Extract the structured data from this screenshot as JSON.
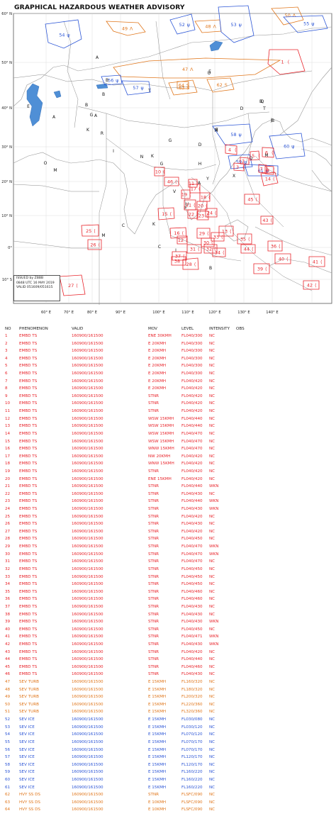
{
  "map": {
    "title": "GRAPHICAL HAZARDOUS WEATHER ADVISORY",
    "issued_by": "ISSUED by ZBBB",
    "issue_time": "0848 UTC 16 MAY 2019",
    "valid": "VALID 051609/051615",
    "lat_labels": [
      "60° N",
      "50° N",
      "40° N",
      "30° N",
      "20° N",
      "10° N",
      "0°",
      "10° S"
    ],
    "lon_labels": [
      "60° E",
      "70° E",
      "80° E",
      "90° E",
      "100° E",
      "110° E",
      "120° E",
      "130° E",
      "140° E"
    ],
    "fir_letters": [
      "A",
      "B",
      "B",
      "E",
      "A",
      "B",
      "G",
      "A",
      "E",
      "U",
      "E",
      "Q",
      "D",
      "T",
      "O",
      "M",
      "K",
      "R",
      "I",
      "N",
      "K",
      "D",
      "C",
      "Q",
      "X",
      "H",
      "A",
      "V",
      "Y",
      "U",
      "C",
      "K",
      "P",
      "M",
      "C",
      "I",
      "B",
      "M",
      "J",
      "M",
      "T",
      "G",
      "B",
      "G",
      "B"
    ],
    "colors": {
      "ts": "#e8232a",
      "turb": "#e0761b",
      "ice": "#2b55d6",
      "ss": "#e0761b",
      "land": "#ffffff",
      "lake": "#4f8fd6",
      "border": "#8a8a8a"
    },
    "advisories": [
      {
        "num": "54",
        "kind": "ice"
      },
      {
        "num": "49",
        "kind": "turb"
      },
      {
        "num": "52",
        "kind": "ice"
      },
      {
        "num": "48",
        "kind": "turb"
      },
      {
        "num": "53",
        "kind": "ice"
      },
      {
        "num": "50",
        "kind": "turb"
      },
      {
        "num": "55",
        "kind": "ice"
      },
      {
        "num": "1",
        "kind": "ts"
      },
      {
        "num": "47",
        "kind": "turb"
      },
      {
        "num": "56",
        "kind": "ice"
      },
      {
        "num": "57",
        "kind": "ice"
      },
      {
        "num": "63",
        "kind": "ss"
      },
      {
        "num": "62",
        "kind": "ss"
      },
      {
        "num": "58",
        "kind": "ice"
      },
      {
        "num": "60",
        "kind": "ice"
      },
      {
        "num": "59",
        "kind": "ice"
      },
      {
        "num": "61",
        "kind": "ice"
      },
      {
        "num": "4",
        "kind": "ts"
      },
      {
        "num": "3",
        "kind": "ts"
      },
      {
        "num": "5",
        "kind": "ts"
      },
      {
        "num": "6",
        "kind": "ts"
      },
      {
        "num": "7",
        "kind": "ts"
      },
      {
        "num": "8",
        "kind": "ts"
      },
      {
        "num": "2",
        "kind": "ts"
      },
      {
        "num": "10",
        "kind": "ts"
      },
      {
        "num": "11",
        "kind": "ts"
      },
      {
        "num": "12",
        "kind": "ts"
      },
      {
        "num": "13",
        "kind": "ts"
      },
      {
        "num": "14",
        "kind": "ts"
      },
      {
        "num": "15",
        "kind": "ts"
      },
      {
        "num": "16",
        "kind": "ts"
      },
      {
        "num": "17",
        "kind": "ts"
      },
      {
        "num": "18",
        "kind": "ts"
      },
      {
        "num": "19",
        "kind": "ts"
      },
      {
        "num": "20",
        "kind": "ts"
      },
      {
        "num": "21",
        "kind": "ts"
      },
      {
        "num": "22",
        "kind": "ts"
      },
      {
        "num": "23",
        "kind": "ts"
      },
      {
        "num": "24",
        "kind": "ts"
      },
      {
        "num": "25",
        "kind": "ts"
      },
      {
        "num": "26",
        "kind": "ts"
      },
      {
        "num": "27",
        "kind": "ts"
      },
      {
        "num": "28",
        "kind": "ts"
      },
      {
        "num": "29",
        "kind": "ts"
      },
      {
        "num": "30",
        "kind": "ts"
      },
      {
        "num": "31",
        "kind": "ts"
      },
      {
        "num": "32",
        "kind": "ts"
      },
      {
        "num": "33",
        "kind": "ts"
      },
      {
        "num": "34",
        "kind": "ts"
      },
      {
        "num": "35",
        "kind": "ts"
      },
      {
        "num": "36",
        "kind": "ts"
      },
      {
        "num": "37",
        "kind": "ts"
      },
      {
        "num": "38",
        "kind": "ts"
      },
      {
        "num": "39",
        "kind": "ts"
      },
      {
        "num": "40",
        "kind": "ts"
      },
      {
        "num": "41",
        "kind": "ts"
      },
      {
        "num": "42",
        "kind": "ts"
      },
      {
        "num": "43",
        "kind": "ts"
      },
      {
        "num": "44",
        "kind": "ts"
      },
      {
        "num": "45",
        "kind": "ts"
      },
      {
        "num": "46",
        "kind": "ts"
      },
      {
        "num": "64",
        "kind": "ss"
      }
    ]
  },
  "table": {
    "headers": {
      "no": "NO",
      "phenomenon": "PHENOMENON",
      "valid": "VALID",
      "mov": "MOV",
      "level": "LEVEL",
      "intensity": "INTENSITY",
      "obs": "OBS"
    },
    "rows": [
      {
        "no": "1",
        "phen": "EMBD TS",
        "valid": "160900/161500",
        "mov": "ENE 30KMH",
        "level": "FL040/300",
        "int": "NC",
        "kind": "ts"
      },
      {
        "no": "2",
        "phen": "EMBD TS",
        "valid": "160900/161500",
        "mov": "E 20KMH",
        "level": "FL040/300",
        "int": "NC",
        "kind": "ts"
      },
      {
        "no": "3",
        "phen": "EMBD TS",
        "valid": "160900/161500",
        "mov": "E 20KMH",
        "level": "FL040/300",
        "int": "NC",
        "kind": "ts"
      },
      {
        "no": "4",
        "phen": "EMBD TS",
        "valid": "160900/161500",
        "mov": "E 20KMH",
        "level": "FL040/300",
        "int": "NC",
        "kind": "ts"
      },
      {
        "no": "5",
        "phen": "EMBD TS",
        "valid": "160900/161500",
        "mov": "E 20KMH",
        "level": "FL040/300",
        "int": "NC",
        "kind": "ts"
      },
      {
        "no": "6",
        "phen": "EMBD TS",
        "valid": "160900/161500",
        "mov": "E 20KMH",
        "level": "FL040/300",
        "int": "NC",
        "kind": "ts"
      },
      {
        "no": "7",
        "phen": "EMBD TS",
        "valid": "160900/161500",
        "mov": "E 20KMH",
        "level": "FL040/420",
        "int": "NC",
        "kind": "ts"
      },
      {
        "no": "8",
        "phen": "EMBD TS",
        "valid": "160900/161500",
        "mov": "E 20KMH",
        "level": "FL040/420",
        "int": "NC",
        "kind": "ts"
      },
      {
        "no": "9",
        "phen": "EMBD TS",
        "valid": "160900/161500",
        "mov": "STNR",
        "level": "FL040/420",
        "int": "NC",
        "kind": "ts"
      },
      {
        "no": "10",
        "phen": "EMBD TS",
        "valid": "160900/161500",
        "mov": "STNR",
        "level": "FL040/420",
        "int": "NC",
        "kind": "ts"
      },
      {
        "no": "11",
        "phen": "EMBD TS",
        "valid": "160900/161500",
        "mov": "STNR",
        "level": "FL040/420",
        "int": "NC",
        "kind": "ts"
      },
      {
        "no": "12",
        "phen": "EMBD TS",
        "valid": "160900/161500",
        "mov": "WSW 15KMH",
        "level": "FL040/440",
        "int": "NC",
        "kind": "ts"
      },
      {
        "no": "13",
        "phen": "EMBD TS",
        "valid": "160900/161500",
        "mov": "WSW 15KMH",
        "level": "FL040/440",
        "int": "NC",
        "kind": "ts"
      },
      {
        "no": "14",
        "phen": "EMBD TS",
        "valid": "160900/161500",
        "mov": "WSW 15KMH",
        "level": "FL040/470",
        "int": "NC",
        "kind": "ts"
      },
      {
        "no": "15",
        "phen": "EMBD TS",
        "valid": "160900/161500",
        "mov": "WSW 15KMH",
        "level": "FL040/470",
        "int": "NC",
        "kind": "ts"
      },
      {
        "no": "16",
        "phen": "EMBD TS",
        "valid": "160900/161500",
        "mov": "WNW 15KMH",
        "level": "FL040/470",
        "int": "NC",
        "kind": "ts"
      },
      {
        "no": "17",
        "phen": "EMBD TS",
        "valid": "160900/161500",
        "mov": "NW 20KMH",
        "level": "FL040/420",
        "int": "NC",
        "kind": "ts"
      },
      {
        "no": "18",
        "phen": "EMBD TS",
        "valid": "160900/161500",
        "mov": "WNW 15KMH",
        "level": "FL040/420",
        "int": "NC",
        "kind": "ts"
      },
      {
        "no": "19",
        "phen": "EMBD TS",
        "valid": "160900/161500",
        "mov": "STNR",
        "level": "FL040/420",
        "int": "NC",
        "kind": "ts"
      },
      {
        "no": "20",
        "phen": "EMBD TS",
        "valid": "160900/161500",
        "mov": "ENE 15KMH",
        "level": "FL040/420",
        "int": "NC",
        "kind": "ts"
      },
      {
        "no": "21",
        "phen": "EMBD TS",
        "valid": "160900/161500",
        "mov": "STNR",
        "level": "FL040/440",
        "int": "WKN",
        "kind": "ts"
      },
      {
        "no": "22",
        "phen": "EMBD TS",
        "valid": "160900/161500",
        "mov": "STNR",
        "level": "FL040/430",
        "int": "NC",
        "kind": "ts"
      },
      {
        "no": "23",
        "phen": "EMBD TS",
        "valid": "160900/161500",
        "mov": "STNR",
        "level": "FL040/440",
        "int": "WKN",
        "kind": "ts"
      },
      {
        "no": "24",
        "phen": "EMBD TS",
        "valid": "160900/161500",
        "mov": "STNR",
        "level": "FL040/430",
        "int": "WKN",
        "kind": "ts"
      },
      {
        "no": "25",
        "phen": "EMBD TS",
        "valid": "160900/161500",
        "mov": "STNR",
        "level": "FL040/420",
        "int": "NC",
        "kind": "ts"
      },
      {
        "no": "26",
        "phen": "EMBD TS",
        "valid": "160900/161500",
        "mov": "STNR",
        "level": "FL040/430",
        "int": "NC",
        "kind": "ts"
      },
      {
        "no": "27",
        "phen": "EMBD TS",
        "valid": "160900/161500",
        "mov": "STNR",
        "level": "FL040/420",
        "int": "NC",
        "kind": "ts"
      },
      {
        "no": "28",
        "phen": "EMBD TS",
        "valid": "160900/161500",
        "mov": "STNR",
        "level": "FL040/450",
        "int": "NC",
        "kind": "ts"
      },
      {
        "no": "29",
        "phen": "EMBD TS",
        "valid": "160900/161500",
        "mov": "STNR",
        "level": "FL040/470",
        "int": "WKN",
        "kind": "ts"
      },
      {
        "no": "30",
        "phen": "EMBD TS",
        "valid": "160900/161500",
        "mov": "STNR",
        "level": "FL040/470",
        "int": "WKN",
        "kind": "ts"
      },
      {
        "no": "31",
        "phen": "EMBD TS",
        "valid": "160900/161500",
        "mov": "STNR",
        "level": "FL040/470",
        "int": "NC",
        "kind": "ts"
      },
      {
        "no": "32",
        "phen": "EMBD TS",
        "valid": "160900/161500",
        "mov": "STNR",
        "level": "FL040/450",
        "int": "NC",
        "kind": "ts"
      },
      {
        "no": "33",
        "phen": "EMBD TS",
        "valid": "160900/161500",
        "mov": "STNR",
        "level": "FL040/450",
        "int": "NC",
        "kind": "ts"
      },
      {
        "no": "34",
        "phen": "EMBD TS",
        "valid": "160900/161500",
        "mov": "STNR",
        "level": "FL040/450",
        "int": "NC",
        "kind": "ts"
      },
      {
        "no": "35",
        "phen": "EMBD TS",
        "valid": "160900/161500",
        "mov": "STNR",
        "level": "FL040/460",
        "int": "NC",
        "kind": "ts"
      },
      {
        "no": "36",
        "phen": "EMBD TS",
        "valid": "160900/161500",
        "mov": "STNR",
        "level": "FL040/460",
        "int": "NC",
        "kind": "ts"
      },
      {
        "no": "37",
        "phen": "EMBD TS",
        "valid": "160900/161500",
        "mov": "STNR",
        "level": "FL040/430",
        "int": "NC",
        "kind": "ts"
      },
      {
        "no": "38",
        "phen": "EMBD TS",
        "valid": "160900/161500",
        "mov": "STNR",
        "level": "FL040/430",
        "int": "NC",
        "kind": "ts"
      },
      {
        "no": "39",
        "phen": "EMBD TS",
        "valid": "160900/161500",
        "mov": "STNR",
        "level": "FL040/430",
        "int": "WKN",
        "kind": "ts"
      },
      {
        "no": "40",
        "phen": "EMBD TS",
        "valid": "160900/161500",
        "mov": "STNR",
        "level": "FL040/450",
        "int": "NC",
        "kind": "ts"
      },
      {
        "no": "41",
        "phen": "EMBD TS",
        "valid": "160900/161500",
        "mov": "STNR",
        "level": "FL040/471",
        "int": "WKN",
        "kind": "ts"
      },
      {
        "no": "42",
        "phen": "EMBD TS",
        "valid": "160900/161500",
        "mov": "STNR",
        "level": "FL040/430",
        "int": "WKN",
        "kind": "ts"
      },
      {
        "no": "43",
        "phen": "EMBD TS",
        "valid": "160900/161500",
        "mov": "STNR",
        "level": "FL040/420",
        "int": "NC",
        "kind": "ts"
      },
      {
        "no": "44",
        "phen": "EMBD TS",
        "valid": "160900/161500",
        "mov": "STNR",
        "level": "FL040/440",
        "int": "NC",
        "kind": "ts"
      },
      {
        "no": "45",
        "phen": "EMBD TS",
        "valid": "160900/161500",
        "mov": "STNR",
        "level": "FL040/460",
        "int": "NC",
        "kind": "ts"
      },
      {
        "no": "46",
        "phen": "EMBD TS",
        "valid": "160900/161500",
        "mov": "STNR",
        "level": "FL040/430",
        "int": "NC",
        "kind": "ts"
      },
      {
        "no": "47",
        "phen": "SEV TURB",
        "valid": "160900/161500",
        "mov": "E 15KMH",
        "level": "FL160/320",
        "int": "NC",
        "kind": "turb"
      },
      {
        "no": "48",
        "phen": "SEV TURB",
        "valid": "160900/161500",
        "mov": "E 15KMH",
        "level": "FL180/320",
        "int": "NC",
        "kind": "turb"
      },
      {
        "no": "49",
        "phen": "SEV TURB",
        "valid": "160900/161500",
        "mov": "E 15KMH",
        "level": "FL200/320",
        "int": "NC",
        "kind": "turb"
      },
      {
        "no": "50",
        "phen": "SEV TURB",
        "valid": "160900/161500",
        "mov": "E 15KMH",
        "level": "FL220/360",
        "int": "NC",
        "kind": "turb"
      },
      {
        "no": "51",
        "phen": "SEV TURB",
        "valid": "160900/161500",
        "mov": "E 15KMH",
        "level": "FL320/360",
        "int": "NC",
        "kind": "turb"
      },
      {
        "no": "52",
        "phen": "SEV ICE",
        "valid": "160900/161500",
        "mov": "E 15KMH",
        "level": "FL030/080",
        "int": "NC",
        "kind": "ice"
      },
      {
        "no": "53",
        "phen": "SEV ICE",
        "valid": "160900/161500",
        "mov": "E 15KMH",
        "level": "FL030/120",
        "int": "NC",
        "kind": "ice"
      },
      {
        "no": "54",
        "phen": "SEV ICE",
        "valid": "160900/161500",
        "mov": "E 15KMH",
        "level": "FL070/120",
        "int": "NC",
        "kind": "ice"
      },
      {
        "no": "55",
        "phen": "SEV ICE",
        "valid": "160900/161500",
        "mov": "E 15KMH",
        "level": "FL070/170",
        "int": "NC",
        "kind": "ice"
      },
      {
        "no": "56",
        "phen": "SEV ICE",
        "valid": "160900/161500",
        "mov": "E 15KMH",
        "level": "FL070/170",
        "int": "NC",
        "kind": "ice"
      },
      {
        "no": "57",
        "phen": "SEV ICE",
        "valid": "160900/161500",
        "mov": "E 15KMH",
        "level": "FL120/170",
        "int": "NC",
        "kind": "ice"
      },
      {
        "no": "58",
        "phen": "SEV ICE",
        "valid": "160900/161500",
        "mov": "E 15KMH",
        "level": "FL120/170",
        "int": "NC",
        "kind": "ice"
      },
      {
        "no": "59",
        "phen": "SEV ICE",
        "valid": "160900/161500",
        "mov": "E 15KMH",
        "level": "FL160/220",
        "int": "NC",
        "kind": "ice"
      },
      {
        "no": "60",
        "phen": "SEV ICE",
        "valid": "160900/161500",
        "mov": "E 15KMH",
        "level": "FL160/220",
        "int": "NC",
        "kind": "ice"
      },
      {
        "no": "61",
        "phen": "SEV ICE",
        "valid": "160900/161500",
        "mov": "E 15KMH",
        "level": "FL160/220",
        "int": "NC",
        "kind": "ice"
      },
      {
        "no": "62",
        "phen": "HVY SS DS",
        "valid": "160900/161500",
        "mov": "STNR",
        "level": "FLSFC/090",
        "int": "NC",
        "kind": "ss"
      },
      {
        "no": "63",
        "phen": "HVY SS DS",
        "valid": "160900/161500",
        "mov": "E 10KMH",
        "level": "FLSFC/090",
        "int": "NC",
        "kind": "ss"
      },
      {
        "no": "64",
        "phen": "HVY SS DS",
        "valid": "160900/161500",
        "mov": "E 10KMH",
        "level": "FLSFC/090",
        "int": "NC",
        "kind": "ss"
      }
    ]
  }
}
